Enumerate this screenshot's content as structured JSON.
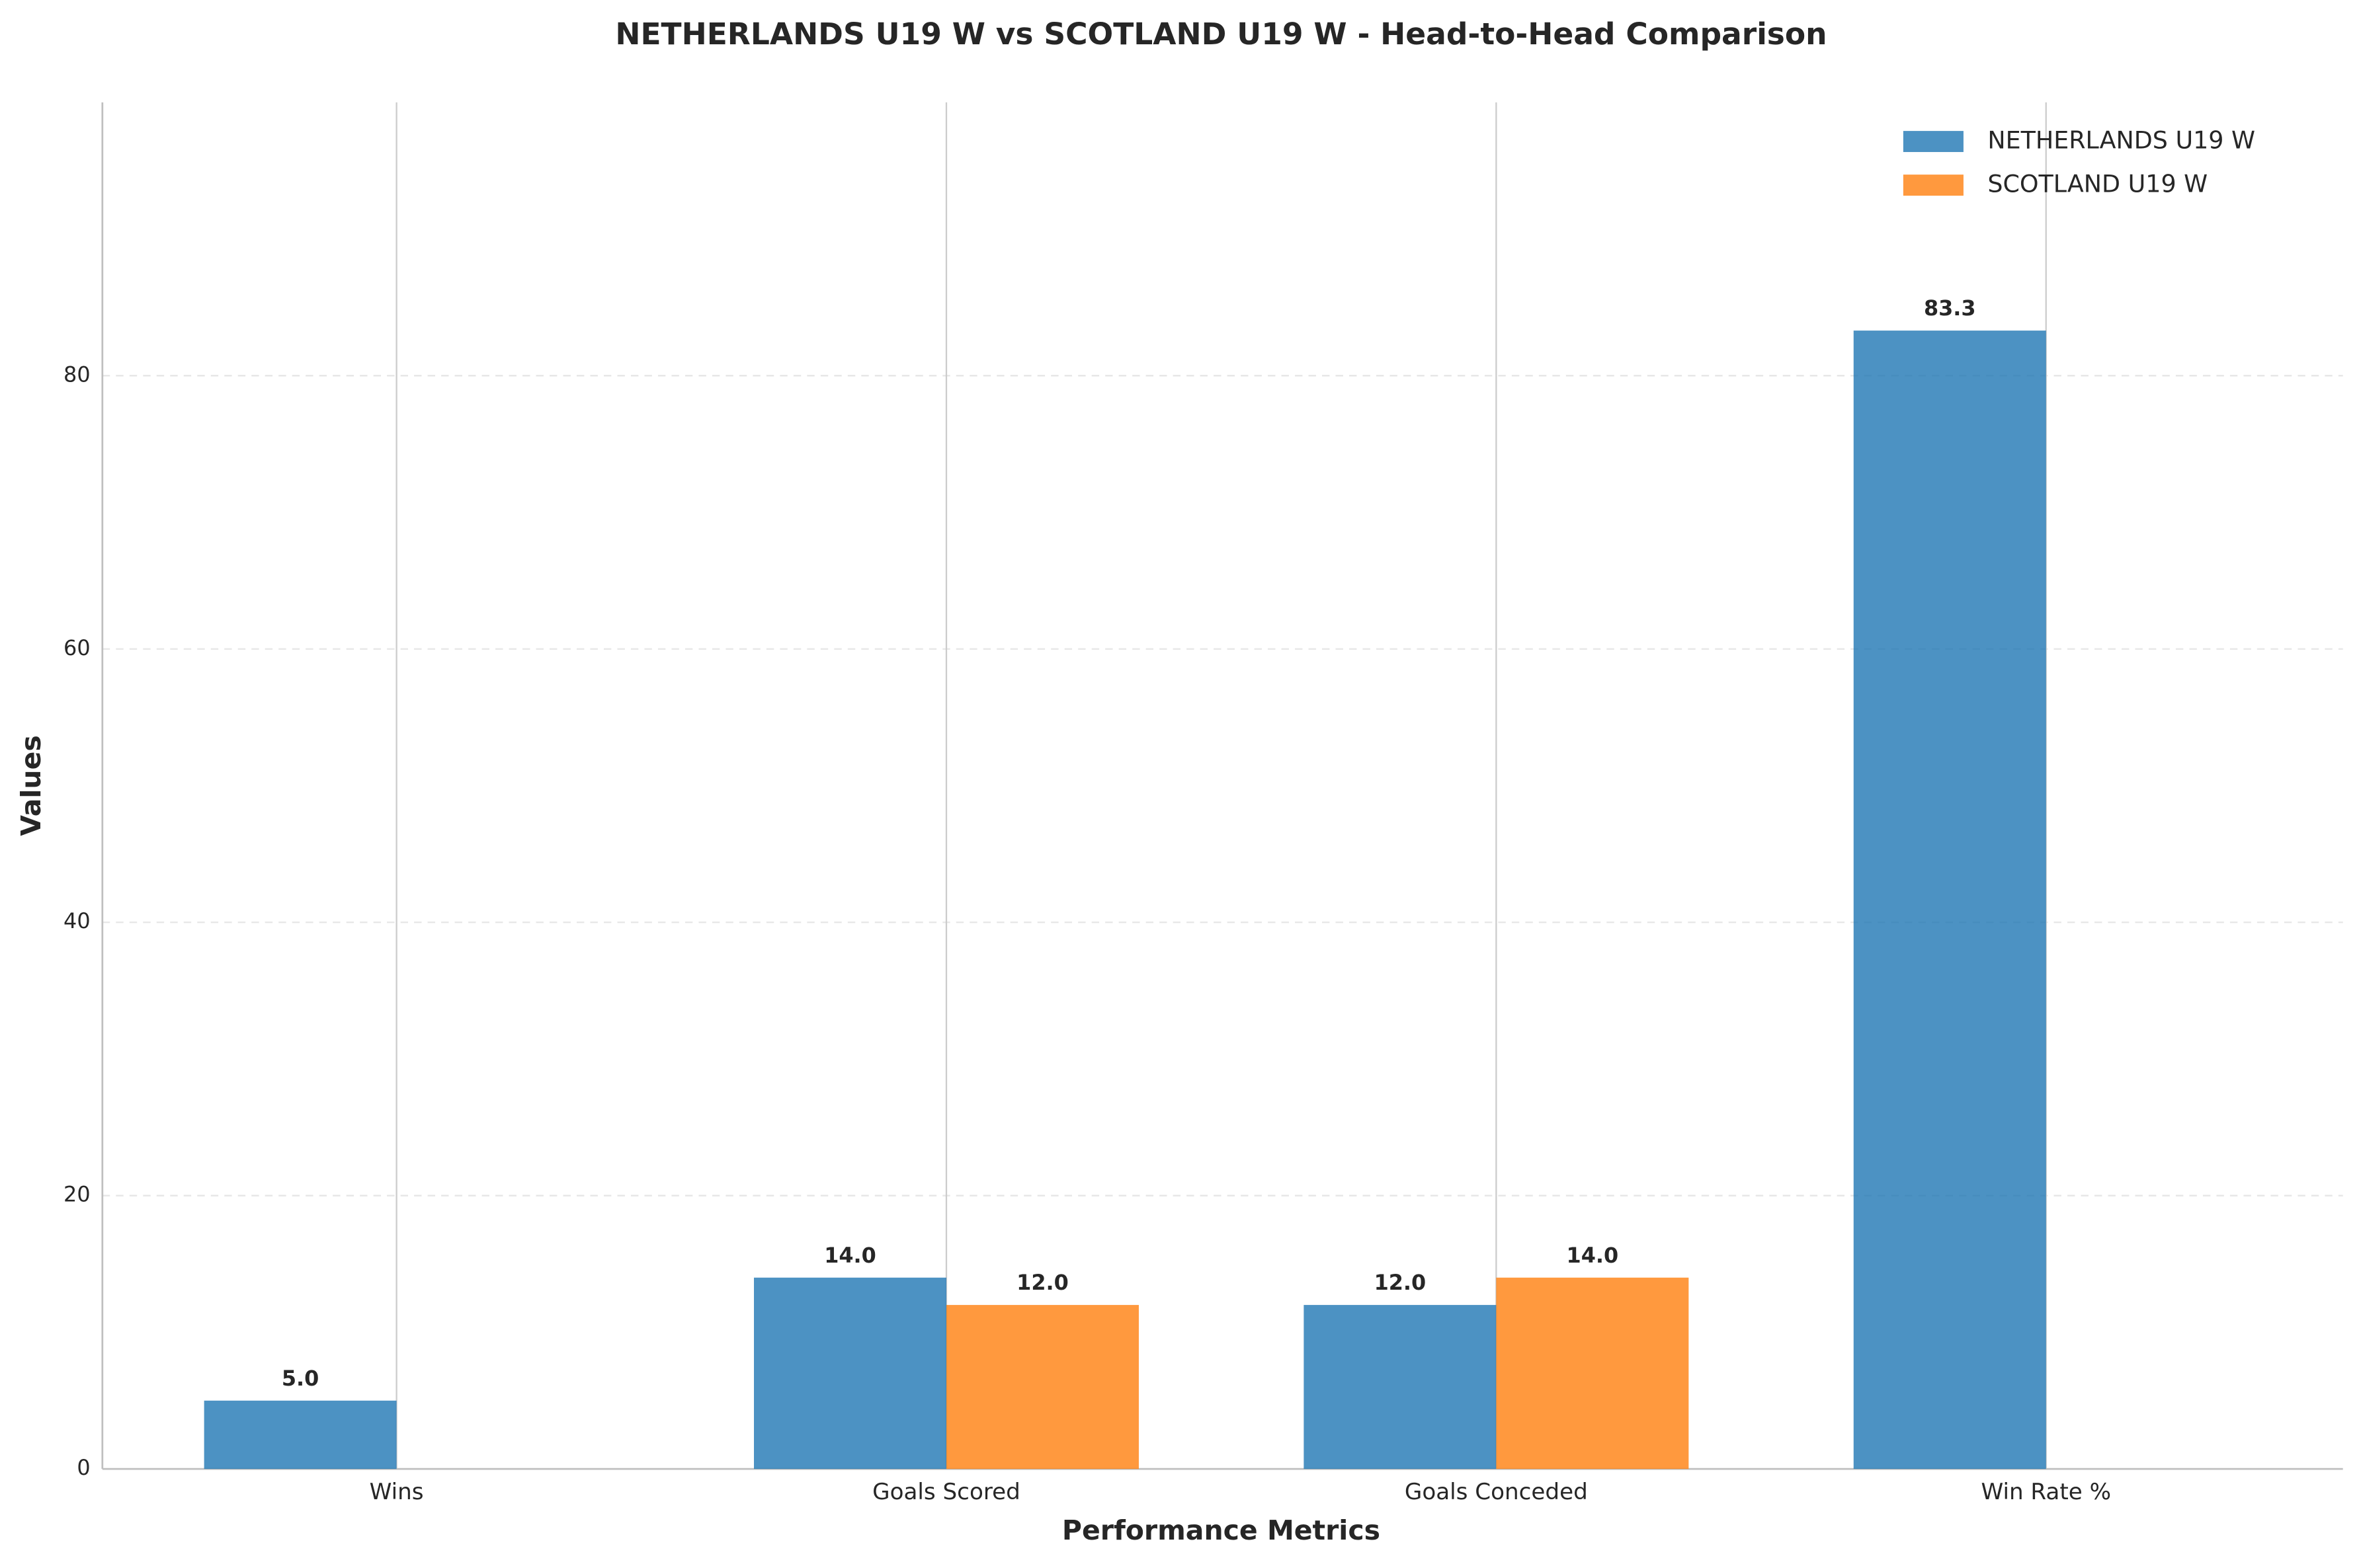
{
  "chart_data": {
    "type": "bar",
    "title": "NETHERLANDS U19 W vs SCOTLAND U19 W - Head-to-Head Comparison",
    "x_label": "Performance Metrics",
    "y_label": "Values",
    "categories": [
      "Wins",
      "Goals Scored",
      "Goals Conceded",
      "Win Rate %"
    ],
    "series": [
      {
        "name": "NETHERLANDS U19 W",
        "color": "#1f77b4",
        "values": [
          5,
          14,
          12,
          83.3
        ],
        "value_labels": [
          "5.0",
          "14.0",
          "12.0",
          "83.3"
        ]
      },
      {
        "name": "SCOTLAND U19 W",
        "color": "#ff7f0e",
        "values": [
          0,
          12,
          14,
          0
        ],
        "value_labels": [
          null,
          "12.0",
          "14.0",
          null
        ]
      }
    ],
    "ylim": [
      0,
      100
    ],
    "yticks": [
      0,
      20,
      40,
      60,
      80
    ],
    "grid": true,
    "legend": "upper right"
  }
}
